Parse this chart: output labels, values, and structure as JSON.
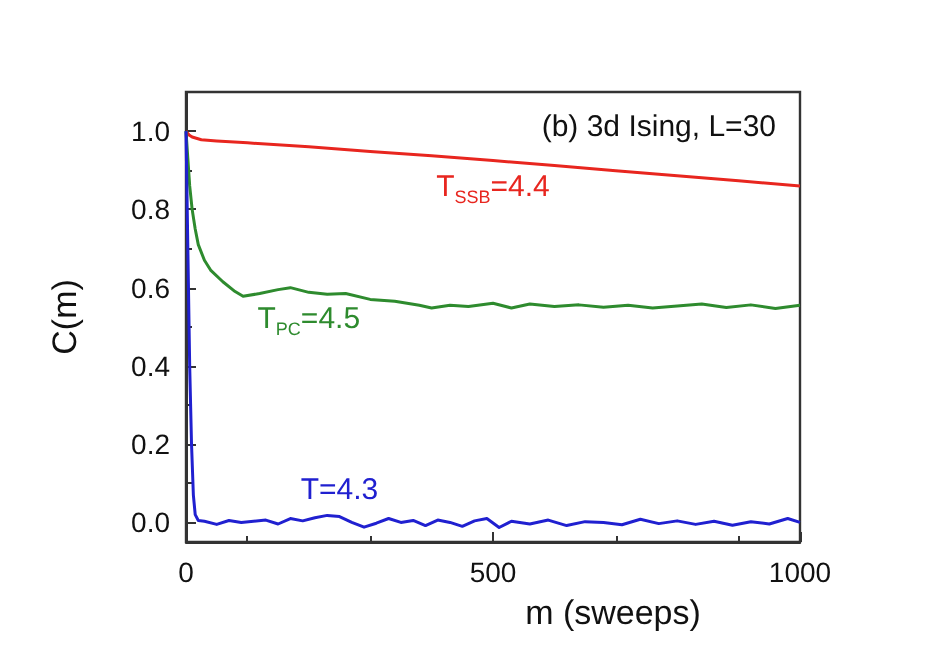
{
  "chart_data": {
    "type": "line",
    "xlabel": "m (sweeps)",
    "ylabel": "C(m)",
    "xlim": [
      0,
      1000
    ],
    "ylim": [
      -0.05,
      1.1
    ],
    "xticks": [
      0,
      500,
      1000
    ],
    "yticks": [
      {
        "value": 0,
        "label": "0.0"
      },
      {
        "value": 0.2,
        "label": "0.2"
      },
      {
        "value": 0.4,
        "label": "0.4"
      },
      {
        "value": 0.6,
        "label": "0.6"
      },
      {
        "value": 0.8,
        "label": "0.8"
      },
      {
        "value": 1,
        "label": "1.0"
      }
    ],
    "grid": false,
    "legend": false,
    "marker": "none",
    "line_style": "solid",
    "annotations": [
      "(b) 3d Ising, L=30"
    ],
    "series": [
      {
        "name": "T$_{SSB}$=4.4",
        "color": "#e8261f",
        "x": [
          0,
          5,
          10,
          25,
          50,
          100,
          200,
          300,
          400,
          500,
          600,
          700,
          800,
          900,
          1000
        ],
        "values": [
          1.0,
          0.99,
          0.985,
          0.978,
          0.975,
          0.97,
          0.96,
          0.948,
          0.937,
          0.925,
          0.912,
          0.899,
          0.886,
          0.873,
          0.86
        ]
      },
      {
        "name": "T$_{PC}$=4.5",
        "color": "#2e8b2e",
        "x": [
          0,
          3,
          6,
          10,
          15,
          20,
          30,
          40,
          60,
          80,
          93,
          120,
          150,
          170,
          200,
          230,
          260,
          300,
          340,
          380,
          400,
          430,
          460,
          500,
          530,
          560,
          600,
          640,
          680,
          720,
          760,
          800,
          840,
          880,
          920,
          960,
          1000
        ],
        "values": [
          1.0,
          0.93,
          0.86,
          0.8,
          0.75,
          0.71,
          0.67,
          0.645,
          0.615,
          0.59,
          0.578,
          0.585,
          0.595,
          0.6,
          0.588,
          0.583,
          0.585,
          0.57,
          0.565,
          0.555,
          0.548,
          0.555,
          0.552,
          0.56,
          0.548,
          0.558,
          0.552,
          0.556,
          0.55,
          0.555,
          0.548,
          0.553,
          0.558,
          0.549,
          0.556,
          0.547,
          0.555
        ]
      },
      {
        "name": "T=4.3",
        "color": "#2020d0",
        "x": [
          0,
          3,
          6,
          9,
          12,
          15,
          20,
          30,
          50,
          70,
          90,
          110,
          130,
          150,
          170,
          190,
          210,
          230,
          250,
          270,
          290,
          310,
          330,
          350,
          370,
          390,
          410,
          430,
          450,
          470,
          490,
          510,
          530,
          560,
          590,
          620,
          650,
          680,
          710,
          740,
          770,
          800,
          830,
          860,
          890,
          920,
          950,
          980,
          1000
        ],
        "values": [
          1.0,
          0.7,
          0.4,
          0.2,
          0.07,
          0.02,
          0.005,
          0.003,
          -0.005,
          0.005,
          0.0,
          0.003,
          0.006,
          -0.004,
          0.01,
          0.004,
          0.012,
          0.018,
          0.015,
          0.0,
          -0.012,
          -0.002,
          0.01,
          0.0,
          0.005,
          -0.008,
          0.006,
          0.0,
          -0.01,
          0.004,
          0.01,
          -0.013,
          0.003,
          -0.004,
          0.006,
          -0.008,
          0.002,
          0.0,
          -0.006,
          0.008,
          -0.003,
          0.004,
          -0.005,
          0.003,
          -0.007,
          0.002,
          -0.004,
          0.01,
          0.0
        ]
      }
    ]
  }
}
